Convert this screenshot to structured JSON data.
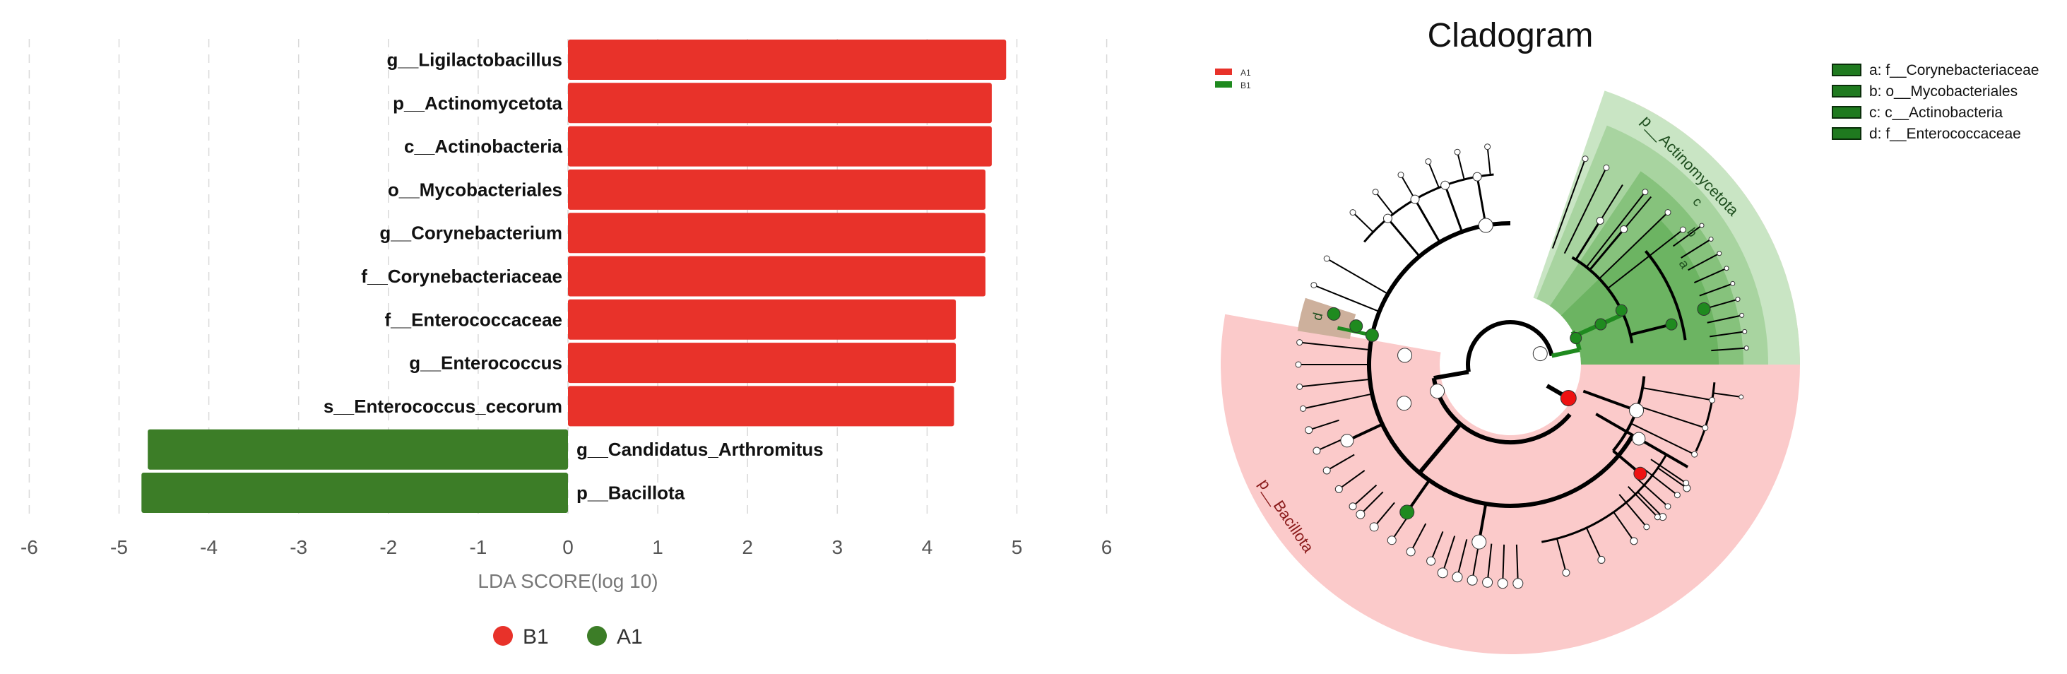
{
  "chart_data": [
    {
      "type": "bar",
      "orientation": "horizontal",
      "xlabel": "LDA SCORE(log 10)",
      "xlim": [
        -6,
        6
      ],
      "xticks": [
        "-6",
        "-5",
        "-4",
        "-3",
        "-2",
        "-1",
        "0",
        "1",
        "2",
        "3",
        "4",
        "5",
        "6"
      ],
      "grid": "vertical dashed",
      "colors": {
        "B1": "#e8322a",
        "A1": "#3c7d27"
      },
      "categories": [
        "g__Ligilactobacillus",
        "p__Actinomycetota",
        "c__Actinobacteria",
        "o__Mycobacteriales",
        "g__Corynebacterium",
        "f__Corynebacteriaceae",
        "f__Enterococcaceae",
        "g__Enterococcus",
        "s__Enterococcus_cecorum",
        "g__Candidatus_Arthromitus",
        "p__Bacillota"
      ],
      "values": [
        4.88,
        4.72,
        4.72,
        4.65,
        4.65,
        4.65,
        4.32,
        4.32,
        4.3,
        -4.68,
        -4.75
      ],
      "groups": [
        "B1",
        "B1",
        "B1",
        "B1",
        "B1",
        "B1",
        "B1",
        "B1",
        "B1",
        "A1",
        "A1"
      ],
      "legend": {
        "position": "bottom",
        "entries": [
          "B1",
          "A1"
        ]
      }
    },
    {
      "type": "cladogram",
      "title": "Cladogram",
      "group_legend": [
        "A1",
        "B1"
      ],
      "group_colors": {
        "A1": "#e8322a",
        "B1": "#1f8a1f"
      },
      "key_legend": [
        "a: f__Corynebacteriaceae",
        "b: o__Mycobacteriales",
        "c: c__Actinobacteria",
        "d: f__Enterococcaceae"
      ],
      "clade_labels": {
        "actinomycetota": "p__Actinomycetota",
        "bacillota": "p__Bacillota",
        "a": "a",
        "b": "b",
        "c": "c",
        "d": "d"
      },
      "colors": {
        "bacillota_bg": "#fbcaca",
        "actino_bg": "#c9e5c4",
        "actino_mid": "#a8d4a0",
        "actino_inner": "#86c27c",
        "actino_core": "#6cb462",
        "enterococcaceae_bg": "#cdb09c",
        "node_green": "#1f8a1f",
        "node_red": "#ee1111"
      }
    }
  ]
}
